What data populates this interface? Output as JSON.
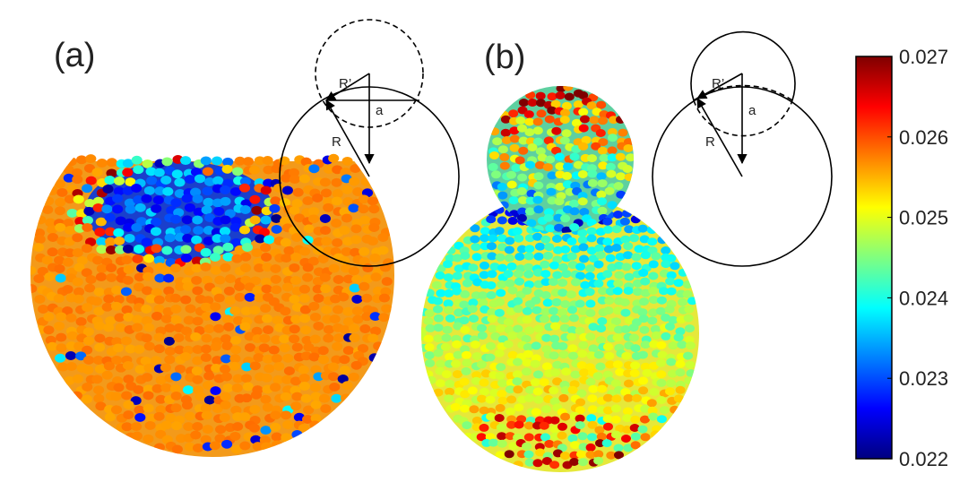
{
  "panels": [
    {
      "label": "(a)",
      "inset": {
        "r_prime": "R’",
        "r": "R",
        "a": "a"
      }
    },
    {
      "label": "(b)",
      "inset": {
        "r_prime": "R’",
        "r": "R",
        "a": "a"
      }
    }
  ],
  "colorbar": {
    "colormap": "jet",
    "min": 0.022,
    "max": 0.027,
    "ticks": [
      "0.027",
      "0.026",
      "0.025",
      "0.024",
      "0.023",
      "0.022"
    ]
  }
}
